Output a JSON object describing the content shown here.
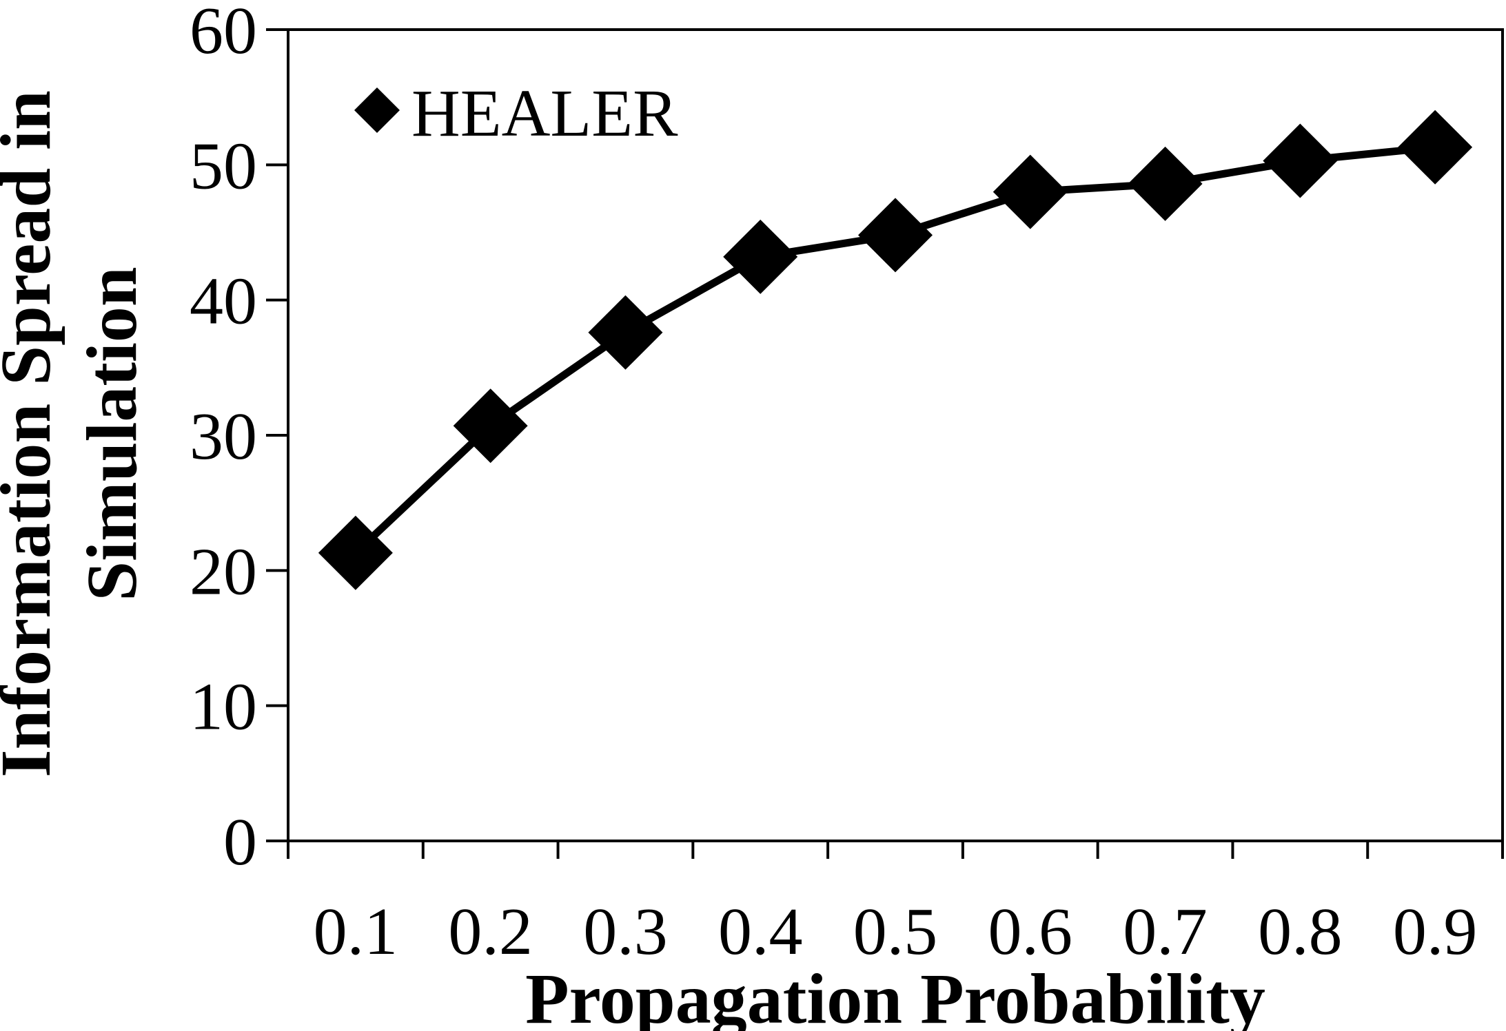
{
  "chart_data": {
    "type": "line",
    "title": "",
    "xlabel": "Propagation Probability",
    "ylabel_lines": [
      "Information Spread in",
      "Simulation"
    ],
    "categories": [
      "0.1",
      "0.2",
      "0.3",
      "0.4",
      "0.5",
      "0.6",
      "0.7",
      "0.8",
      "0.9"
    ],
    "series": [
      {
        "name": "HEALER",
        "marker": "diamond",
        "color": "#000000",
        "values": [
          21.3,
          30.7,
          37.6,
          43.2,
          44.8,
          48.0,
          48.6,
          50.3,
          51.3
        ]
      }
    ],
    "ylim": [
      0,
      60
    ],
    "yticks": [
      "0",
      "10",
      "20",
      "30",
      "40",
      "50",
      "60"
    ],
    "grid": false,
    "legend_position": "top-left"
  }
}
